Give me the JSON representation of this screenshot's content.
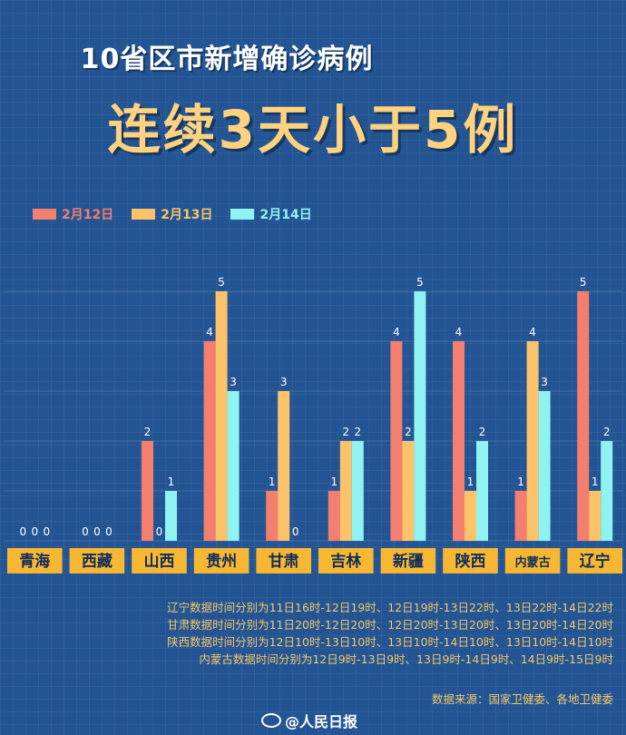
{
  "title_line1": "10省区市新增确诊病例",
  "title_line2": "连续3天小于5例",
  "notes": [
    "辽宁数据时间分别为11日16时-12日19时、12日19时-13日22时、13日22时-14日22时",
    "甘肃数据时间分别为11日20时-12日20时、12日20时-13日20时、13日20时-14日20时",
    "陕西数据时间分别为12日10时-13日10时、13日10时-14日10时、13日10时-14日10时",
    "内蒙古数据时间分别为12日9时-13日9时、13日9时-14日9时、14日9时-15日9时"
  ],
  "source": "数据来源：国家卫健委、各地卫健委",
  "watermark": "@人民日报",
  "colors": {
    "feb12": "#f57f6e",
    "feb13": "#fcc36b",
    "feb14": "#8ff3f2",
    "label_bg": "#f7b733",
    "label_text": "#0e2e5c"
  },
  "chart_data": {
    "type": "bar",
    "categories": [
      "青海",
      "西藏",
      "山西",
      "贵州",
      "甘肃",
      "吉林",
      "新疆",
      "陕西",
      "内蒙古",
      "辽宁"
    ],
    "series": [
      {
        "name": "2月12日",
        "values": [
          0,
          0,
          2,
          4,
          1,
          1,
          4,
          4,
          1,
          5
        ]
      },
      {
        "name": "2月13日",
        "values": [
          0,
          0,
          0,
          5,
          3,
          2,
          2,
          1,
          4,
          1
        ]
      },
      {
        "name": "2月14日",
        "values": [
          0,
          0,
          1,
          3,
          0,
          2,
          5,
          2,
          3,
          2
        ]
      }
    ],
    "ylim": [
      0,
      5
    ],
    "grid": true,
    "legend": "top-left"
  }
}
